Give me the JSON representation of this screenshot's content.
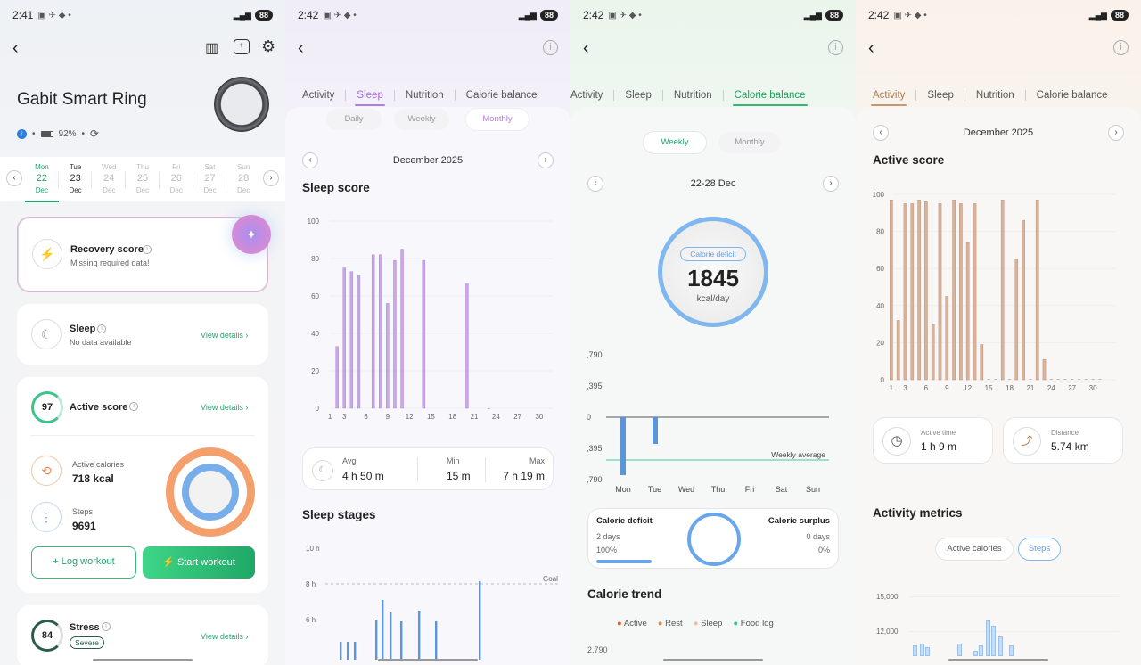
{
  "panel1": {
    "status_time": "2:41",
    "battery": "88",
    "device_name": "Gabit Smart Ring",
    "ring_battery": "92%",
    "calendar": [
      {
        "day": "Mon",
        "date": "22",
        "month": "Dec"
      },
      {
        "day": "Tue",
        "date": "23",
        "month": "Dec"
      },
      {
        "day": "Wed",
        "date": "24",
        "month": "Dec"
      },
      {
        "day": "Thu",
        "date": "25",
        "month": "Dec"
      },
      {
        "day": "Fri",
        "date": "26",
        "month": "Dec"
      },
      {
        "day": "Sat",
        "date": "27",
        "month": "Dec"
      },
      {
        "day": "Sun",
        "date": "28",
        "month": "Dec"
      }
    ],
    "recovery_title": "Recovery score",
    "recovery_sub": "Missing required data!",
    "sleep_title": "Sleep",
    "sleep_sub": "No data available",
    "view_details": "View details",
    "active_score": "97",
    "active_title": "Active score",
    "active_cal_label": "Active calories",
    "active_cal_value": "718 kcal",
    "steps_label": "Steps",
    "steps_value": "9691",
    "log_workout": "Log workout",
    "start_workout": "Start workout",
    "stress_score": "84",
    "stress_title": "Stress",
    "stress_badge": "Severe"
  },
  "panel2": {
    "status_time": "2:42",
    "battery": "88",
    "tabs": [
      "Activity",
      "Sleep",
      "Nutrition",
      "Calorie balance"
    ],
    "pills": [
      "Daily",
      "Weekly",
      "Monthly"
    ],
    "month": "December 2025",
    "sleep_score_title": "Sleep score",
    "y_ticks": [
      "100",
      "80",
      "60",
      "40",
      "20",
      "0"
    ],
    "x_ticks": [
      "1",
      "3",
      "6",
      "9",
      "12",
      "15",
      "18",
      "21",
      "24",
      "27",
      "30"
    ],
    "avg_label": "Avg",
    "avg_value": "4 h 50 m",
    "min_label": "Min",
    "min_value": "15 m",
    "max_label": "Max",
    "max_value": "7 h 19 m",
    "stages_title": "Sleep stages",
    "stage_y": [
      "10 h",
      "8 h",
      "6 h"
    ],
    "goal_label": "Goal"
  },
  "panel3": {
    "status_time": "2:42",
    "battery": "88",
    "tabs": [
      "Activity",
      "Sleep",
      "Nutrition",
      "Calorie balance"
    ],
    "pills": [
      "Weekly",
      "Monthly"
    ],
    "range": "22-28 Dec",
    "deficit_badge": "Calorie deficit",
    "deficit_value": "1845",
    "deficit_unit": "kcal/day",
    "y_ticks": [
      ",790",
      ",395",
      "0",
      ",395",
      ",790"
    ],
    "weekly_avg_label": "Weekly average",
    "days": [
      "Mon",
      "Tue",
      "Wed",
      "Thu",
      "Fri",
      "Sat",
      "Sun"
    ],
    "summary_deficit_label": "Calorie deficit",
    "summary_deficit_days": "2 days",
    "summary_deficit_pct": "100%",
    "summary_surplus_label": "Calorie surplus",
    "summary_surplus_days": "0 days",
    "summary_surplus_pct": "0%",
    "trend_title": "Calorie trend",
    "legend": [
      "Active",
      "Rest",
      "Sleep",
      "Food log"
    ],
    "trend_y_first": "2,790"
  },
  "panel4": {
    "status_time": "2:42",
    "battery": "88",
    "tabs": [
      "Activity",
      "Sleep",
      "Nutrition",
      "Calorie balance"
    ],
    "month": "December 2025",
    "active_score_title": "Active score",
    "y_ticks": [
      "100",
      "80",
      "60",
      "40",
      "20",
      "0"
    ],
    "x_ticks": [
      "1",
      "3",
      "6",
      "9",
      "12",
      "15",
      "18",
      "21",
      "24",
      "27",
      "30"
    ],
    "active_time_label": "Active time",
    "active_time_value": "1 h 9 m",
    "distance_label": "Distance",
    "distance_value": "5.74 km",
    "metrics_title": "Activity metrics",
    "pills": [
      "Active calories",
      "Steps"
    ],
    "steps_y": [
      "15,000",
      "12,000"
    ]
  },
  "colors": {
    "sleep_bar": "#c9a6ea",
    "active_bar": "#d8b29a",
    "green": "#2fbf78",
    "blue": "#6aa7ea",
    "orange": "#f2a470"
  },
  "chart_data": [
    {
      "type": "bar",
      "title": "Sleep score",
      "x": [
        2,
        3,
        4,
        5,
        7,
        8,
        9,
        10,
        11,
        14,
        20,
        23
      ],
      "values": [
        33,
        75,
        73,
        71,
        82,
        82,
        56,
        79,
        85,
        79,
        67,
        0
      ],
      "ylim": [
        0,
        100
      ]
    },
    {
      "type": "bar",
      "title": "Active score",
      "x": [
        1,
        2,
        3,
        4,
        5,
        6,
        7,
        8,
        9,
        10,
        11,
        12,
        13,
        14,
        15,
        16,
        17,
        18,
        19,
        20,
        21,
        22,
        23
      ],
      "values": [
        97,
        32,
        95,
        95,
        97,
        96,
        30,
        95,
        45,
        97,
        95,
        74,
        95,
        19,
        0,
        0,
        97,
        0,
        65,
        86,
        0,
        97,
        11
      ],
      "ylim": [
        0,
        100
      ]
    }
  ]
}
